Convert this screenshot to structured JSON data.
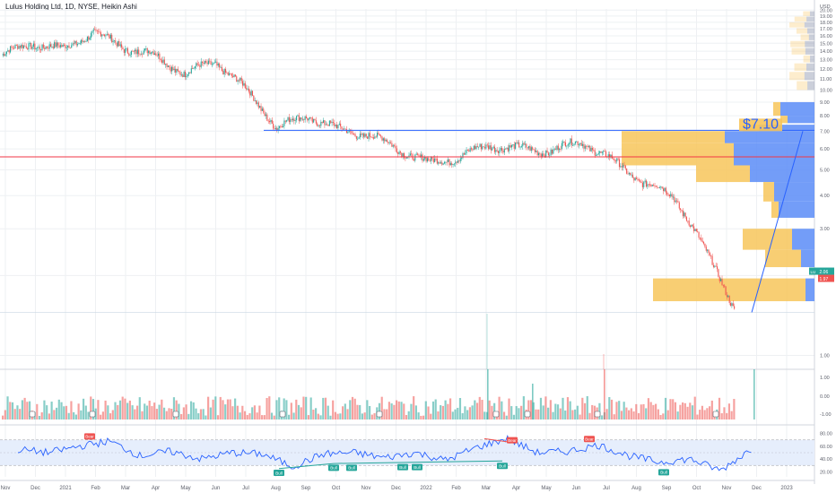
{
  "header": {
    "title": "Lulus Holding Ltd, 1D, NYSE, Heikin Ashi",
    "currency": "USD"
  },
  "colors": {
    "up": "#26a69a",
    "down": "#ef5350",
    "grid": "#eef0f3",
    "axis_text": "#5d606b",
    "resistance": "#2962ff",
    "support": "#f23645",
    "vp_up": "#f7c55b",
    "vp_down": "#5b8cf7",
    "rsi_line": "#2962ff",
    "rsi_band": "#e6eefc",
    "bull_label": "#26a69a",
    "bear_label": "#ef5350",
    "price_tag": "#26a69a",
    "price_tag_red": "#ef5350"
  },
  "annotation": {
    "target_text": "$7.10"
  },
  "price_tags": {
    "current": "2.06",
    "prev": "1.97",
    "symbol": "LU"
  },
  "chart_data": [
    {
      "type": "line",
      "title": "Lulus Holding Ltd, 1D, NYSE, Heikin Ashi",
      "ylabel": "USD",
      "x_ticks": [
        "Nov",
        "Dec",
        "2021",
        "Feb",
        "Mar",
        "Apr",
        "May",
        "Jun",
        "Jul",
        "Aug",
        "Sep",
        "Oct",
        "Nov",
        "Dec",
        "2022",
        "Feb",
        "Mar",
        "Apr",
        "May",
        "Jun",
        "Jul",
        "Aug",
        "Sep",
        "Oct",
        "Nov",
        "Dec",
        "2023"
      ],
      "y_ticks": [
        "1.00",
        "2.00",
        "3.00",
        "4.00",
        "5.00",
        "6.00",
        "7.00",
        "8.00",
        "9.00",
        "10.00",
        "11.00",
        "12.00",
        "13.00",
        "14.00",
        "15.00",
        "16.00",
        "17.00",
        "18.00",
        "19.00",
        "20.00"
      ],
      "ylim": [
        0.9,
        20.2
      ],
      "series": [
        {
          "x": [
            "Nov",
            "Dec",
            "2021",
            "Feb",
            "Mar",
            "Apr",
            "May",
            "Jun",
            "Jul",
            "Aug",
            "Sep",
            "Oct",
            "Nov",
            "Dec",
            "2022",
            "Feb",
            "Mar",
            "Apr",
            "May",
            "Jun",
            "Jul",
            "Aug",
            "Sep",
            "Oct",
            "Nov"
          ],
          "values": [
            13.5,
            15.0,
            14.2,
            16.5,
            14.5,
            13.5,
            11.5,
            12.8,
            10.0,
            7.2,
            8.0,
            7.1,
            6.8,
            6.0,
            5.3,
            5.6,
            6.2,
            6.0,
            5.9,
            6.4,
            5.4,
            4.5,
            4.0,
            2.5,
            1.5
          ]
        }
      ],
      "volume_axis_ticks": [
        "1.00",
        "0.00",
        "-1.00"
      ],
      "grid": true
    },
    {
      "type": "line",
      "title": "",
      "y_ticks": [
        "80.00",
        "60.00",
        "40.00",
        "20.00"
      ],
      "ylim": [
        12,
        88
      ],
      "bands": [
        30,
        70
      ],
      "series": [
        {
          "x": [
            "Nov",
            "Dec",
            "2021",
            "Feb",
            "Mar",
            "Apr",
            "May",
            "Jun",
            "Jul",
            "Aug",
            "Sep",
            "Oct",
            "Nov",
            "Dec",
            "2022",
            "Feb",
            "Mar",
            "Apr",
            "May",
            "Jun",
            "Jul",
            "Aug",
            "Sep",
            "Oct",
            "Nov"
          ],
          "values": [
            55,
            50,
            60,
            68,
            45,
            52,
            40,
            50,
            48,
            28,
            48,
            50,
            42,
            50,
            38,
            58,
            72,
            50,
            52,
            62,
            45,
            35,
            40,
            22,
            56
          ]
        }
      ],
      "labels": [
        "Bear",
        "Bull",
        "Bull",
        "Bull",
        "Bull",
        "Bull",
        "Bull",
        "Bull",
        "Bear",
        "Bear",
        "Bull"
      ],
      "grid": true
    }
  ]
}
